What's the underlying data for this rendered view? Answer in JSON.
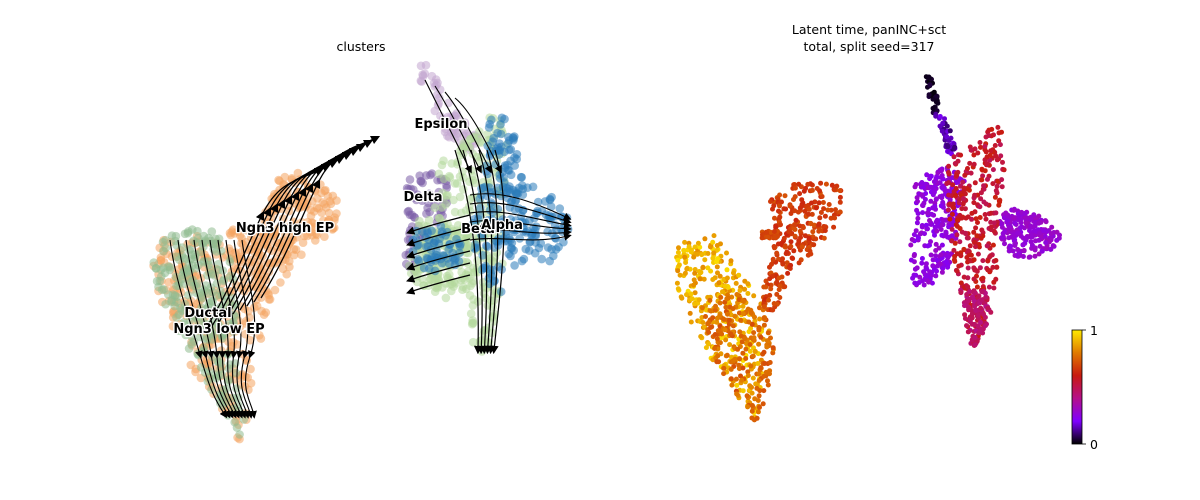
{
  "chart_data": [
    {
      "type": "scatter",
      "subtype": "embedding velocity stream plot",
      "title": "clusters",
      "axes_visible": false,
      "grid": false,
      "legend": "on data",
      "streamlines": true,
      "clusters": [
        {
          "name": "Ductal",
          "color": "#8fbc8f"
        },
        {
          "name": "Ngn3 low EP",
          "color": "#f4a460"
        },
        {
          "name": "Ngn3 high EP",
          "color": "#f4a460"
        },
        {
          "name": "Epsilon",
          "color": "#c2a5cf"
        },
        {
          "name": "Delta",
          "color": "#7b5ea7"
        },
        {
          "name": "Beta",
          "color": "#b5d99c"
        },
        {
          "name": "Alpha",
          "color": "#2b7bb9"
        }
      ],
      "labels": [
        {
          "text": "Ductal",
          "cluster": "Ductal"
        },
        {
          "text": "Ngn3 low EP",
          "cluster": "Ngn3 low EP"
        },
        {
          "text": "Ngn3 high EP",
          "cluster": "Ngn3 high EP"
        },
        {
          "text": "Epsilon",
          "cluster": "Epsilon"
        },
        {
          "text": "Delta",
          "cluster": "Delta"
        },
        {
          "text": "Beta",
          "cluster": "Beta"
        },
        {
          "text": "Alpha",
          "cluster": "Alpha"
        }
      ]
    },
    {
      "type": "scatter",
      "subtype": "embedding colored by continuous value",
      "title_lines": [
        "Latent time, panINC+sct",
        "total, split seed=317"
      ],
      "axes_visible": false,
      "grid": false,
      "colormap": "gnuplot",
      "colormap_stops": [
        "#000000",
        "#7f00ff",
        "#b5108a",
        "#c81a10",
        "#e07a00",
        "#ffea00"
      ],
      "colorbar": {
        "min": 0,
        "max": 1,
        "ticks": [
          "0",
          "1"
        ],
        "placement": "right"
      },
      "value_range": [
        0,
        1
      ]
    }
  ]
}
